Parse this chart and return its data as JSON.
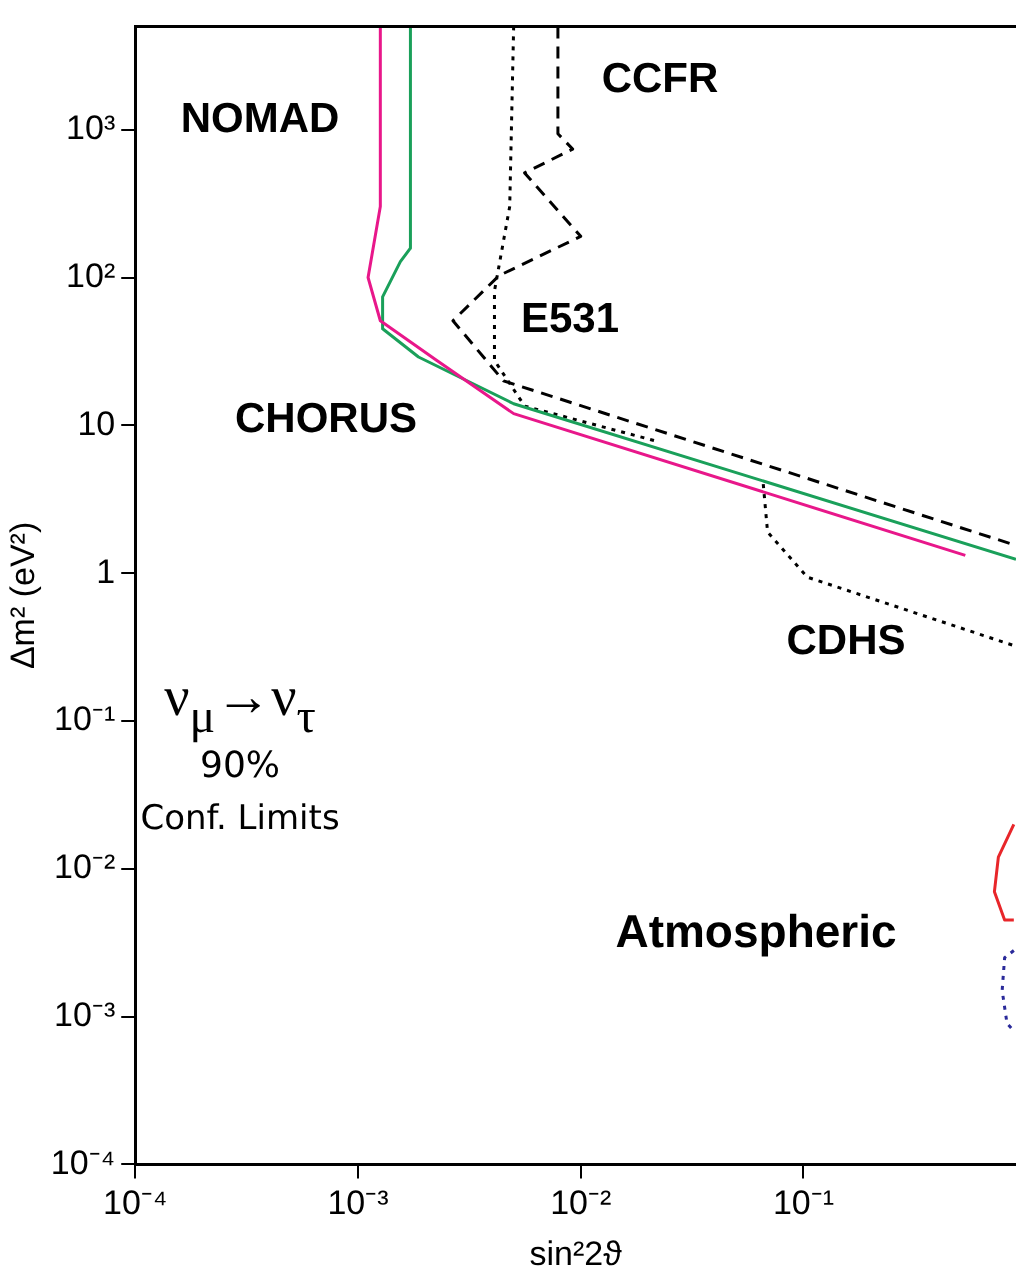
{
  "chart_data": {
    "type": "line",
    "xlabel": "sin²2ϑ",
    "ylabel": "Δm² (eV²)",
    "log": "xy",
    "grid": false,
    "legend": false,
    "marker": "none",
    "xlim": [
      0.0001,
      0.9
    ],
    "ylim": [
      0.0001,
      5000
    ],
    "xticks": [
      {
        "value": 0.0001,
        "label": "10⁻⁴"
      },
      {
        "value": 0.001,
        "label": "10⁻³"
      },
      {
        "value": 0.01,
        "label": "10⁻²"
      },
      {
        "value": 0.1,
        "label": "10⁻¹"
      }
    ],
    "yticks": [
      {
        "value": 0.0001,
        "label": "10⁻⁴"
      },
      {
        "value": 0.001,
        "label": "10⁻³"
      },
      {
        "value": 0.01,
        "label": "10⁻²"
      },
      {
        "value": 0.1,
        "label": "10⁻¹"
      },
      1,
      10,
      {
        "value": 100,
        "label": "10²"
      },
      {
        "value": 1000,
        "label": "10³"
      }
    ],
    "series": [
      {
        "color": "#e8178a",
        "line_style": "solid",
        "x": [
          0.00126,
          0.00126,
          0.00111,
          0.00126,
          0.00226,
          0.005,
          0.533
        ],
        "values": [
          5000,
          302,
          100,
          51,
          27.5,
          12,
          1.32
        ]
      },
      {
        "color": "#1aa05a",
        "line_style": "solid",
        "x": [
          0.00172,
          0.00172,
          0.00155,
          0.00129,
          0.00129,
          0.00187,
          0.005,
          0.9
        ],
        "values": [
          5000,
          158,
          128,
          74,
          45,
          29,
          14,
          1.24
        ]
      },
      {
        "color": "#000000",
        "line_style": "dashed",
        "x": [
          0.0079,
          0.0079,
          0.0092,
          0.0056,
          0.01,
          0.0043,
          0.00267,
          0.00366,
          0.0045,
          0.9
        ],
        "values": [
          5000,
          940,
          740,
          510,
          190,
          103,
          51,
          29,
          20,
          1.54
        ]
      },
      {
        "color": "#000000",
        "line_style": "dotted",
        "x": [
          0.005,
          0.0048,
          0.0041,
          0.0041,
          0.0056,
          0.022
        ],
        "values": [
          5000,
          302,
          81,
          27.5,
          13.5,
          7.8
        ]
      },
      {
        "color": "#000000",
        "line_style": "dotted",
        "x": [
          0.066,
          0.069,
          0.104,
          0.9
        ],
        "values": [
          4.0,
          1.9,
          0.94,
          0.32
        ]
      },
      {
        "color": "#e8262a",
        "line_style": "solid",
        "x": [
          0.88,
          0.75,
          0.72,
          0.8,
          0.88
        ],
        "values": [
          0.02,
          0.012,
          0.007,
          0.0045,
          0.0045
        ]
      },
      {
        "color": "#2a2a9a",
        "line_style": "dotted",
        "x": [
          0.88,
          0.8,
          0.78,
          0.82,
          0.88
        ],
        "values": [
          0.0028,
          0.0025,
          0.0015,
          0.0009,
          0.0008
        ]
      }
    ],
    "annotations": [
      "NOMAD",
      "CCFR",
      "E531",
      "CHORUS",
      "CDHS",
      "ν$_{μ}$→ν$_{τ}$",
      "90%",
      "Conf. Limits",
      "Atmospheric"
    ]
  }
}
